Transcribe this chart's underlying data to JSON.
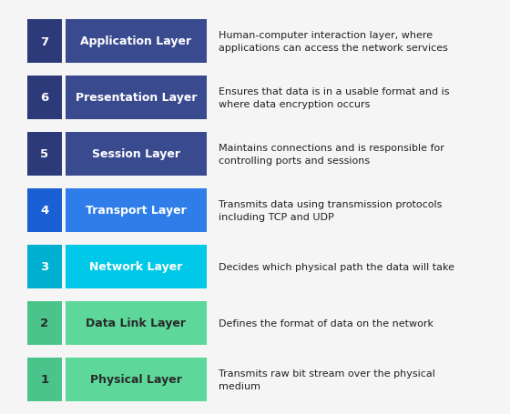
{
  "layers": [
    {
      "number": "7",
      "name": "Application Layer",
      "description": "Human-computer interaction layer, where\napplications can access the network services",
      "num_color": "#2d3a7a",
      "bar_color": "#3a4a8f",
      "text_color": "#ffffff"
    },
    {
      "number": "6",
      "name": "Presentation Layer",
      "description": "Ensures that data is in a usable format and is\nwhere data encryption occurs",
      "num_color": "#2d3a7a",
      "bar_color": "#3a4a8f",
      "text_color": "#ffffff"
    },
    {
      "number": "5",
      "name": "Session Layer",
      "description": "Maintains connections and is responsible for\ncontrolling ports and sessions",
      "num_color": "#2d3a7a",
      "bar_color": "#3a4a8f",
      "text_color": "#ffffff"
    },
    {
      "number": "4",
      "name": "Transport Layer",
      "description": "Transmits data using transmission protocols\nincluding TCP and UDP",
      "num_color": "#1a5fd4",
      "bar_color": "#2e7de8",
      "text_color": "#ffffff"
    },
    {
      "number": "3",
      "name": "Network Layer",
      "description": "Decides which physical path the data will take",
      "num_color": "#00b0d0",
      "bar_color": "#00c8e8",
      "text_color": "#ffffff"
    },
    {
      "number": "2",
      "name": "Data Link Layer",
      "description": "Defines the format of data on the network",
      "num_color": "#4ac48a",
      "bar_color": "#5dd89a",
      "text_color": "#2a2a2a"
    },
    {
      "number": "1",
      "name": "Physical Layer",
      "description": "Transmits raw bit stream over the physical\nmedium",
      "num_color": "#4ac48a",
      "bar_color": "#5dd89a",
      "text_color": "#2a2a2a"
    }
  ],
  "background_color": "#f5f5f5",
  "desc_color": "#222222",
  "fig_width": 5.6,
  "fig_height": 4.56,
  "dpi": 100
}
